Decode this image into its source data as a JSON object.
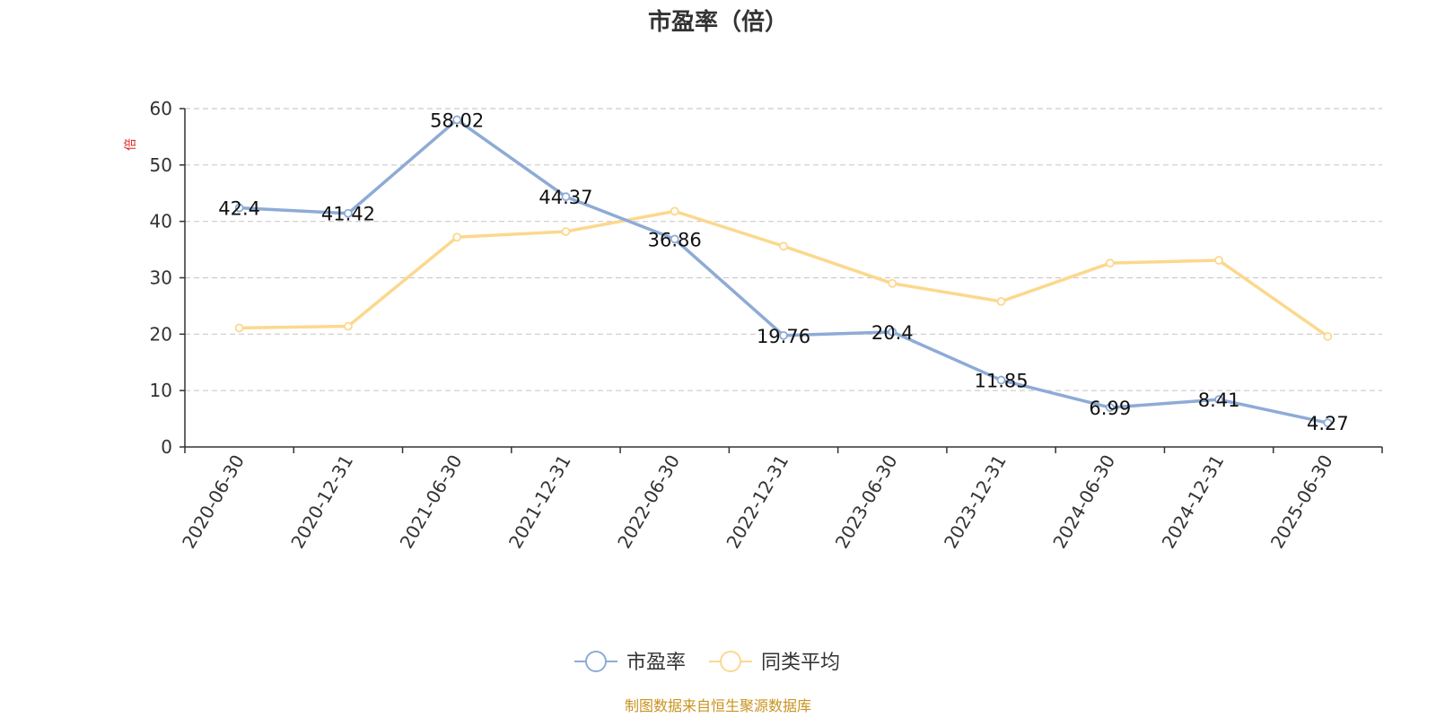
{
  "chart_data": {
    "type": "line",
    "title": "市盈率（倍）",
    "ylabel": "倍",
    "xlabel": "",
    "ylim": [
      0,
      60
    ],
    "yticks": [
      0,
      10,
      20,
      30,
      40,
      50,
      60
    ],
    "grid": true,
    "legend_position": "bottom-center",
    "categories": [
      "2020-06-30",
      "2020-12-31",
      "2021-06-30",
      "2021-12-31",
      "2022-06-30",
      "2022-12-31",
      "2023-06-30",
      "2023-12-31",
      "2024-06-30",
      "2024-12-31",
      "2025-06-30"
    ],
    "series": [
      {
        "name": "市盈率",
        "color": "#8eabd6",
        "show_labels": true,
        "values": [
          42.4,
          41.42,
          58.02,
          44.37,
          36.86,
          19.76,
          20.4,
          11.85,
          6.99,
          8.41,
          4.27
        ]
      },
      {
        "name": "同类平均",
        "color": "#fcd88e",
        "show_labels": false,
        "values": [
          21.1,
          21.4,
          37.2,
          38.2,
          41.8,
          35.6,
          29.0,
          25.8,
          32.6,
          33.1,
          19.6
        ]
      }
    ],
    "source": "制图数据来自恒生聚源数据库"
  }
}
